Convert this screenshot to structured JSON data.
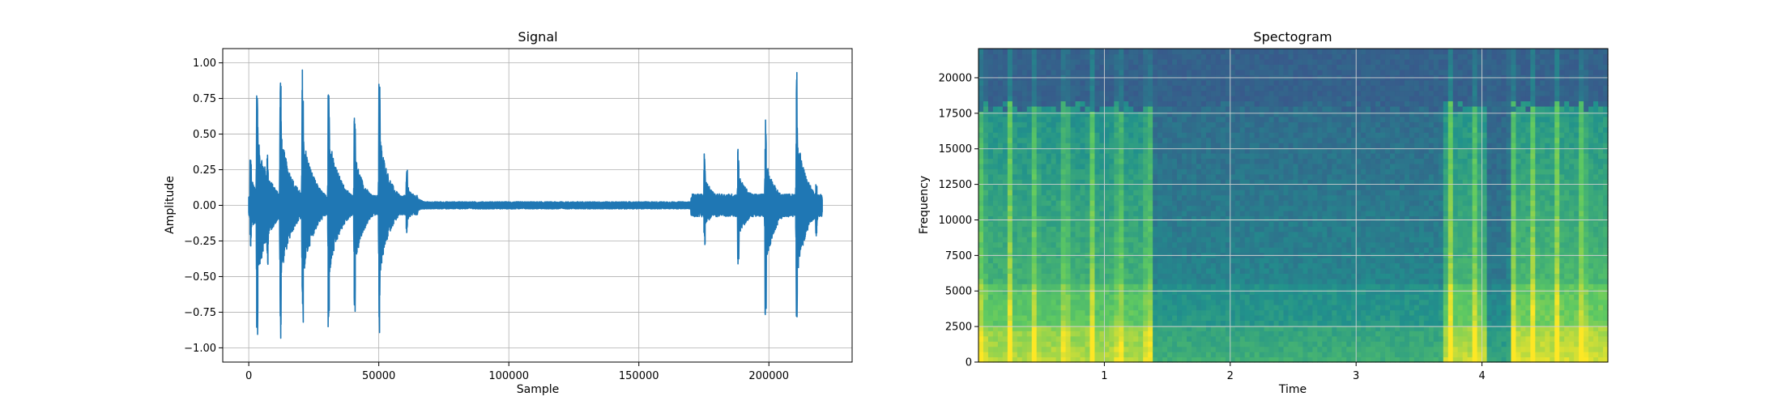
{
  "chart_data": [
    {
      "type": "line",
      "title": "Signal",
      "xlabel": "Sample",
      "ylabel": "Amplitude",
      "xlim": [
        -10000,
        232000
      ],
      "ylim": [
        -1.1,
        1.1
      ],
      "xticks": [
        0,
        50000,
        100000,
        150000,
        200000
      ],
      "xtick_labels": [
        "0",
        "50000",
        "100000",
        "150000",
        "200000"
      ],
      "yticks": [
        -1.0,
        -0.75,
        -0.5,
        -0.25,
        0.0,
        0.25,
        0.5,
        0.75,
        1.0
      ],
      "ytick_labels": [
        "−1.00",
        "−0.75",
        "−0.50",
        "−0.25",
        "0.00",
        "0.25",
        "0.50",
        "0.75",
        "1.00"
      ],
      "grid": true,
      "color": "#1f77b4",
      "sample_count": 220500,
      "events": [
        {
          "x": 500,
          "pos": 0.35,
          "neg": -0.32,
          "decay": 6000
        },
        {
          "x": 3000,
          "pos": 0.94,
          "neg": -1.0,
          "decay": 5000
        },
        {
          "x": 7000,
          "pos": 0.38,
          "neg": -0.45,
          "decay": 5000
        },
        {
          "x": 12000,
          "pos": 1.0,
          "neg": -1.0,
          "decay": 4500
        },
        {
          "x": 20500,
          "pos": 1.0,
          "neg": -1.0,
          "decay": 4500
        },
        {
          "x": 30500,
          "pos": 1.0,
          "neg": -1.0,
          "decay": 4500
        },
        {
          "x": 40500,
          "pos": 0.72,
          "neg": -0.85,
          "decay": 4000
        },
        {
          "x": 50000,
          "pos": 1.0,
          "neg": -1.0,
          "decay": 4000
        },
        {
          "x": 60500,
          "pos": 0.28,
          "neg": -0.22,
          "decay": 4000
        },
        {
          "x": 175000,
          "pos": 0.38,
          "neg": -0.3,
          "decay": 4500
        },
        {
          "x": 188000,
          "pos": 0.42,
          "neg": -0.43,
          "decay": 5000
        },
        {
          "x": 198500,
          "pos": 0.65,
          "neg": -0.84,
          "decay": 4000
        },
        {
          "x": 210500,
          "pos": 1.0,
          "neg": -0.98,
          "decay": 4000
        },
        {
          "x": 218000,
          "pos": 0.16,
          "neg": -0.23,
          "decay": 3000
        }
      ],
      "noise": [
        {
          "from": 0,
          "to": 65000,
          "amp": 0.07
        },
        {
          "from": 65000,
          "to": 170000,
          "amp": 0.025
        },
        {
          "from": 170000,
          "to": 220500,
          "amp": 0.08
        }
      ]
    },
    {
      "type": "heatmap",
      "title": "Spectogram",
      "xlabel": "Time",
      "ylabel": "Frequency",
      "xlim": [
        0.0,
        5.0
      ],
      "ylim": [
        0,
        22050
      ],
      "xticks": [
        1,
        2,
        3,
        4
      ],
      "xtick_labels": [
        "1",
        "2",
        "3",
        "4"
      ],
      "yticks": [
        0,
        2500,
        5000,
        7500,
        10000,
        12500,
        15000,
        17500,
        20000
      ],
      "ytick_labels": [
        "0",
        "2500",
        "5000",
        "7500",
        "10000",
        "12500",
        "15000",
        "17500",
        "20000"
      ],
      "grid": true,
      "colormap": "viridis",
      "colormap_stops": [
        "#440154",
        "#3b528b",
        "#21918c",
        "#5ec962",
        "#fde725"
      ],
      "cutoff_freq": 18000,
      "onsets": [
        0.03,
        0.25,
        0.45,
        0.69,
        0.9,
        1.12,
        1.35,
        3.75,
        3.95,
        4.24,
        4.4,
        4.6,
        4.8
      ],
      "loud_regions": [
        {
          "from": 0.0,
          "to": 1.4,
          "level": 0.78
        },
        {
          "from": 1.4,
          "to": 3.7,
          "level": 0.55
        },
        {
          "from": 3.7,
          "to": 4.05,
          "level": 0.8
        },
        {
          "from": 4.05,
          "to": 4.25,
          "level": 0.5
        },
        {
          "from": 4.25,
          "to": 5.0,
          "level": 0.82
        }
      ]
    }
  ]
}
